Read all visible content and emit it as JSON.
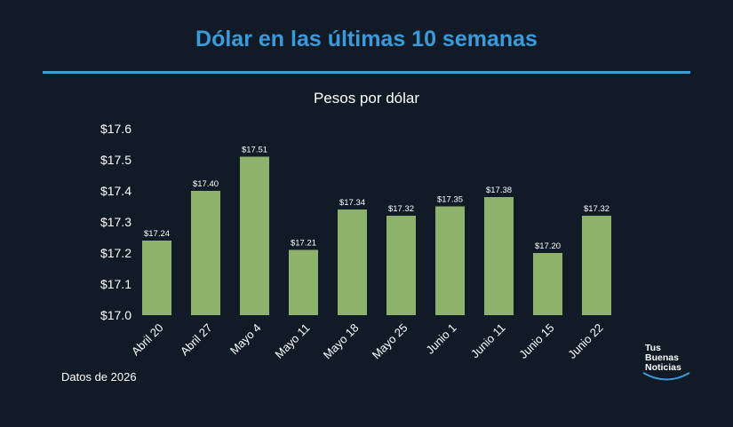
{
  "chart_data": {
    "type": "bar",
    "title": "Dólar en las últimas 10 semanas",
    "subtitle": "Pesos por dólar",
    "categories": [
      "Abril 20",
      "Abril 27",
      "Mayo 4",
      "Mayo 11",
      "Mayo 18",
      "Mayo 25",
      "Junio 1",
      "Junio 11",
      "Junio 15",
      "Junio 22"
    ],
    "values": [
      17.24,
      17.4,
      17.51,
      17.21,
      17.34,
      17.32,
      17.35,
      17.38,
      17.2,
      17.32
    ],
    "data_labels": [
      "$17.24",
      "$17.40",
      "$17.51",
      "$17.21",
      "$17.34",
      "$17.32",
      "$17.35",
      "$17.38",
      "$17.20",
      "$17.32"
    ],
    "yticks": [
      17.0,
      17.1,
      17.2,
      17.3,
      17.4,
      17.5,
      17.6
    ],
    "ytick_labels": [
      "$17.0",
      "$17.1",
      "$17.2",
      "$17.3",
      "$17.4",
      "$17.5",
      "$17.6"
    ],
    "ylim": [
      17.0,
      17.6
    ],
    "xlabel": "",
    "ylabel": "",
    "grid": false,
    "legend": "none",
    "bar_color": "#8db26b",
    "background_color": "#111b27",
    "title_color": "#3a9bdc"
  },
  "footnote": "Datos de 2026",
  "logo": {
    "line1": "Tus",
    "line2": "Buenas",
    "line3": "Noticias"
  }
}
